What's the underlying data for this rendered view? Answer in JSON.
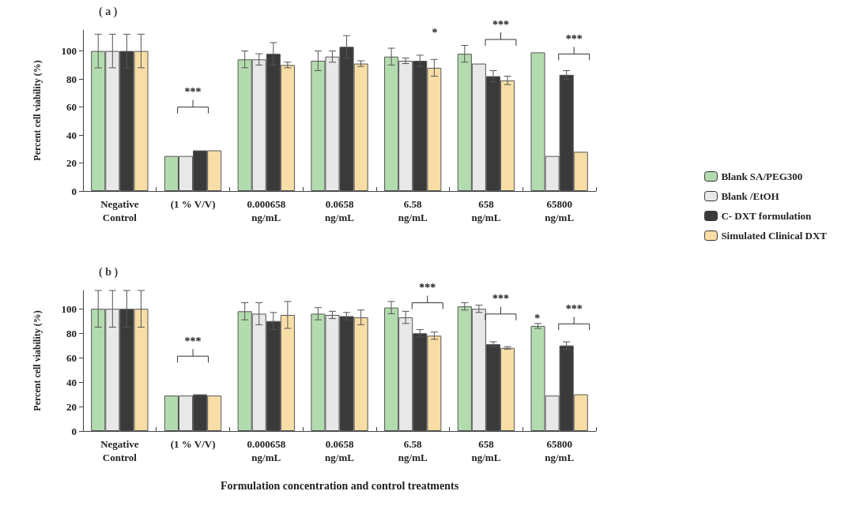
{
  "chart_data": [
    {
      "type": "bar",
      "title": "( a )",
      "ylabel": "Percent cell viability (%)",
      "categories": [
        "Negative\nControl",
        "(1 % V/V)",
        "0.000658\nng/mL",
        "0.0658\nng/mL",
        "6.58\nng/mL",
        "658\nng/mL",
        "65800\nng/mL"
      ],
      "ylim": [
        0,
        115
      ],
      "yticks": [
        0,
        20,
        40,
        60,
        80,
        100
      ],
      "legend": "right",
      "series": [
        {
          "name": "Blank SA/PEG300",
          "color": "#b3dcae",
          "values": [
            100,
            25,
            94,
            93,
            96,
            98,
            99
          ],
          "errors": [
            12,
            null,
            6,
            7,
            6,
            6,
            null
          ]
        },
        {
          "name": "Blank /EtOH",
          "color": "#e8e8e8",
          "values": [
            100,
            25,
            94,
            96,
            93,
            91,
            25
          ],
          "errors": [
            12,
            null,
            4,
            4,
            2,
            null,
            null
          ]
        },
        {
          "name": "C- DXT formulation",
          "color": "#3a3a3a",
          "values": [
            100,
            29,
            98,
            103,
            93,
            82,
            83
          ],
          "errors": [
            12,
            null,
            8,
            8,
            4,
            4,
            3
          ]
        },
        {
          "name": "Simulated Clinical DXT",
          "color": "#f8dea6",
          "values": [
            100,
            29,
            90,
            91,
            88,
            79,
            28
          ],
          "errors": [
            12,
            null,
            2,
            2,
            6,
            3,
            null
          ]
        }
      ],
      "annotations": [
        "***",
        "*",
        "***",
        "***"
      ]
    },
    {
      "type": "bar",
      "title": "( b )",
      "ylabel": "Percent cell viability (%)",
      "xlabel": "Formulation concentration and control treatments",
      "categories": [
        "Negative\nControl",
        "(1 % V/V)",
        "0.000658\nng/mL",
        "0.0658\nng/mL",
        "6.58\nng/mL",
        "658\nng/mL",
        "65800\nng/mL"
      ],
      "ylim": [
        0,
        115
      ],
      "yticks": [
        0,
        20,
        40,
        60,
        80,
        100
      ],
      "series": [
        {
          "color": "#b3dcae",
          "values": [
            100,
            29,
            98,
            96,
            101,
            102,
            86
          ],
          "errors": [
            15,
            null,
            7,
            5,
            5,
            3,
            2
          ]
        },
        {
          "color": "#e8e8e8",
          "values": [
            100,
            29,
            96,
            95,
            93,
            100,
            29
          ],
          "errors": [
            15,
            null,
            9,
            3,
            5,
            3,
            null
          ]
        },
        {
          "color": "#3a3a3a",
          "values": [
            100,
            30,
            90,
            94,
            80,
            71,
            70
          ],
          "errors": [
            15,
            null,
            7,
            3,
            3,
            2,
            3
          ]
        },
        {
          "color": "#f8dea6",
          "values": [
            100,
            29,
            95,
            93,
            78,
            68,
            30
          ],
          "errors": [
            15,
            null,
            11,
            6,
            3,
            1,
            null
          ]
        }
      ],
      "annotations": [
        "***",
        "***",
        "***",
        "*",
        "***"
      ]
    }
  ]
}
